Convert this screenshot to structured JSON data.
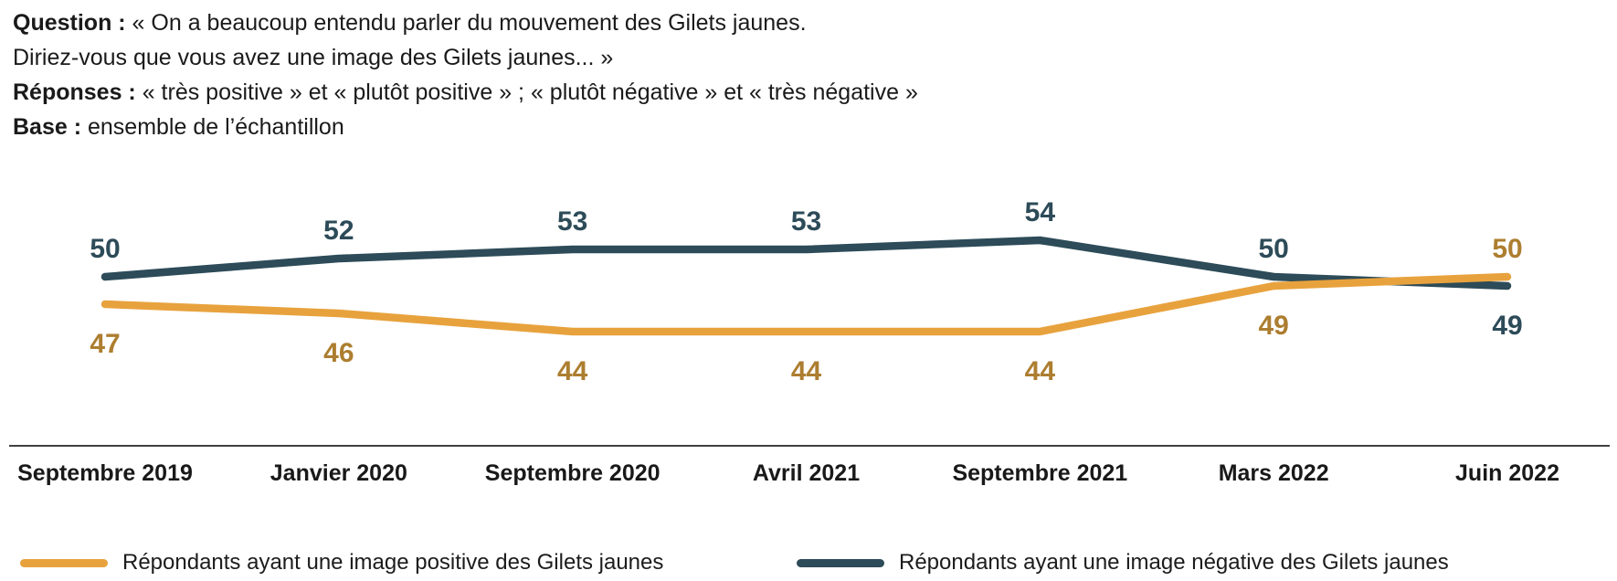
{
  "header": {
    "question_label": "Question :",
    "question_line1": " « On a beaucoup entendu parler du mouvement des Gilets jaunes.",
    "question_line2": "Diriez-vous que vous avez une image des Gilets jaunes... »",
    "responses_label": "Réponses :",
    "responses_text": " « très positive » et « plutôt positive » ; « plutôt négative » et « très négative »",
    "base_label": "Base :",
    "base_text": " ensemble de l’échantillon"
  },
  "chart_data": {
    "type": "line",
    "categories": [
      "Septembre 2019",
      "Janvier 2020",
      "Septembre 2020",
      "Avril 2021",
      "Septembre 2021",
      "Mars 2022",
      "Juin 2022"
    ],
    "series": [
      {
        "name": "Répondants ayant une image positive des Gilets jaunes",
        "values": [
          47,
          46,
          44,
          44,
          44,
          49,
          50
        ],
        "color": "#E8A23D",
        "label_color": "#AD7E30"
      },
      {
        "name": "Répondants ayant une image négative des Gilets jaunes",
        "values": [
          50,
          52,
          53,
          53,
          54,
          50,
          49
        ],
        "color": "#2D4B58",
        "label_color": "#2D4B58"
      }
    ],
    "title": "",
    "xlabel": "",
    "ylabel": "",
    "value_range_hint": [
      44,
      54
    ],
    "grid": false,
    "data_labels": true,
    "legend_position": "bottom"
  },
  "colors": {
    "positive_line": "#E8A23D",
    "positive_label_text": "#AD7E30",
    "negative_line": "#2D4B58",
    "axis_line": "#414141",
    "text": "#1a1a1a"
  }
}
